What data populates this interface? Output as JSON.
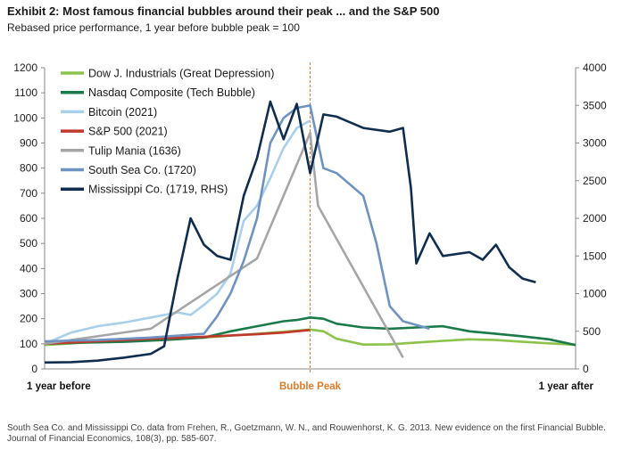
{
  "title": "Exhibit 2: Most famous financial bubbles around their peak ... and the S&P 500",
  "subtitle": "Rebased price performance, 1 year before bubble peak = 100",
  "source": "South Sea Co. and Mississippi Co. data from Frehen, R., Goetzmann, W. N., and Rouwenhorst, K. G. 2013. New evidence on the first Financial Bubble. Journal of Financial Economics, 108(3), pp. 585-607.",
  "chart_data": {
    "type": "line",
    "x_labels": [
      "1 year before",
      "Bubble Peak",
      "1 year after"
    ],
    "xlim": [
      -1,
      1
    ],
    "ylim": [
      0,
      1200
    ],
    "y2lim": [
      0,
      4000
    ],
    "y_ticks": [
      0,
      100,
      200,
      300,
      400,
      500,
      600,
      700,
      800,
      900,
      1000,
      1100,
      1200
    ],
    "y2_ticks": [
      0,
      500,
      1000,
      1500,
      2000,
      2500,
      3000,
      3500,
      4000
    ],
    "peak_marker": {
      "x": 0,
      "color": "#e07b2a"
    },
    "legend_position": "top-left",
    "series": [
      {
        "name": "Dow J. Industrials (Great Depression)",
        "color": "#8cc34a",
        "axis": "left",
        "points": [
          [
            -1,
            95
          ],
          [
            -0.85,
            105
          ],
          [
            -0.7,
            112
          ],
          [
            -0.55,
            118
          ],
          [
            -0.4,
            125
          ],
          [
            -0.2,
            140
          ],
          [
            -0.1,
            148
          ],
          [
            0,
            157
          ],
          [
            0.05,
            150
          ],
          [
            0.1,
            120
          ],
          [
            0.2,
            97
          ],
          [
            0.3,
            98
          ],
          [
            0.4,
            105
          ],
          [
            0.5,
            112
          ],
          [
            0.6,
            118
          ],
          [
            0.7,
            115
          ],
          [
            0.8,
            108
          ],
          [
            0.9,
            102
          ],
          [
            1,
            96
          ]
        ]
      },
      {
        "name": "Nasdaq Composite (Tech Bubble)",
        "color": "#1a7a4a",
        "axis": "left",
        "points": [
          [
            -1,
            100
          ],
          [
            -0.85,
            105
          ],
          [
            -0.7,
            108
          ],
          [
            -0.55,
            115
          ],
          [
            -0.4,
            125
          ],
          [
            -0.3,
            150
          ],
          [
            -0.2,
            170
          ],
          [
            -0.1,
            190
          ],
          [
            -0.05,
            195
          ],
          [
            0,
            205
          ],
          [
            0.05,
            200
          ],
          [
            0.1,
            180
          ],
          [
            0.2,
            165
          ],
          [
            0.3,
            160
          ],
          [
            0.4,
            165
          ],
          [
            0.5,
            170
          ],
          [
            0.6,
            150
          ],
          [
            0.7,
            140
          ],
          [
            0.8,
            130
          ],
          [
            0.9,
            118
          ],
          [
            1,
            95
          ]
        ]
      },
      {
        "name": "Bitcoin (2021)",
        "color": "#a8d0ea",
        "axis": "left",
        "points": [
          [
            -1,
            100
          ],
          [
            -0.9,
            145
          ],
          [
            -0.8,
            170
          ],
          [
            -0.7,
            185
          ],
          [
            -0.6,
            205
          ],
          [
            -0.5,
            225
          ],
          [
            -0.45,
            215
          ],
          [
            -0.4,
            255
          ],
          [
            -0.35,
            300
          ],
          [
            -0.3,
            380
          ],
          [
            -0.25,
            590
          ],
          [
            -0.2,
            650
          ],
          [
            -0.15,
            760
          ],
          [
            -0.1,
            880
          ],
          [
            -0.05,
            960
          ],
          [
            0,
            990
          ]
        ]
      },
      {
        "name": "S&P 500 (2021)",
        "color": "#c0392b",
        "axis": "left",
        "points": [
          [
            -1,
            100
          ],
          [
            -0.8,
            110
          ],
          [
            -0.6,
            120
          ],
          [
            -0.4,
            128
          ],
          [
            -0.2,
            138
          ],
          [
            -0.1,
            145
          ],
          [
            0,
            155
          ]
        ]
      },
      {
        "name": "Tulip Mania (1636)",
        "color": "#a6a6a6",
        "axis": "left",
        "points": [
          [
            -1,
            100
          ],
          [
            -0.6,
            160
          ],
          [
            -0.2,
            440
          ],
          [
            0,
            940
          ],
          [
            0.03,
            650
          ],
          [
            0.35,
            45
          ]
        ]
      },
      {
        "name": "South Sea Co. (1720)",
        "color": "#6f93c1",
        "axis": "left",
        "points": [
          [
            -1,
            110
          ],
          [
            -0.8,
            115
          ],
          [
            -0.6,
            125
          ],
          [
            -0.4,
            140
          ],
          [
            -0.35,
            210
          ],
          [
            -0.3,
            300
          ],
          [
            -0.25,
            430
          ],
          [
            -0.2,
            600
          ],
          [
            -0.15,
            900
          ],
          [
            -0.1,
            1000
          ],
          [
            -0.05,
            1040
          ],
          [
            0,
            1050
          ],
          [
            0.05,
            800
          ],
          [
            0.1,
            780
          ],
          [
            0.2,
            690
          ],
          [
            0.25,
            500
          ],
          [
            0.3,
            250
          ],
          [
            0.35,
            190
          ],
          [
            0.45,
            160
          ]
        ]
      },
      {
        "name": "Mississippi Co. (1719, RHS)",
        "color": "#0f2d4f",
        "axis": "right",
        "points": [
          [
            -1,
            85
          ],
          [
            -0.9,
            90
          ],
          [
            -0.8,
            110
          ],
          [
            -0.7,
            150
          ],
          [
            -0.6,
            200
          ],
          [
            -0.55,
            300
          ],
          [
            -0.5,
            1200
          ],
          [
            -0.45,
            2000
          ],
          [
            -0.4,
            1650
          ],
          [
            -0.35,
            1500
          ],
          [
            -0.3,
            1450
          ],
          [
            -0.25,
            2300
          ],
          [
            -0.2,
            2800
          ],
          [
            -0.15,
            3550
          ],
          [
            -0.1,
            3050
          ],
          [
            -0.05,
            3520
          ],
          [
            0,
            2600
          ],
          [
            0.05,
            3380
          ],
          [
            0.1,
            3350
          ],
          [
            0.2,
            3200
          ],
          [
            0.3,
            3150
          ],
          [
            0.35,
            3200
          ],
          [
            0.38,
            2400
          ],
          [
            0.4,
            1400
          ],
          [
            0.45,
            1800
          ],
          [
            0.5,
            1500
          ],
          [
            0.6,
            1550
          ],
          [
            0.65,
            1450
          ],
          [
            0.7,
            1650
          ],
          [
            0.75,
            1350
          ],
          [
            0.8,
            1200
          ],
          [
            0.85,
            1150
          ]
        ]
      }
    ]
  }
}
